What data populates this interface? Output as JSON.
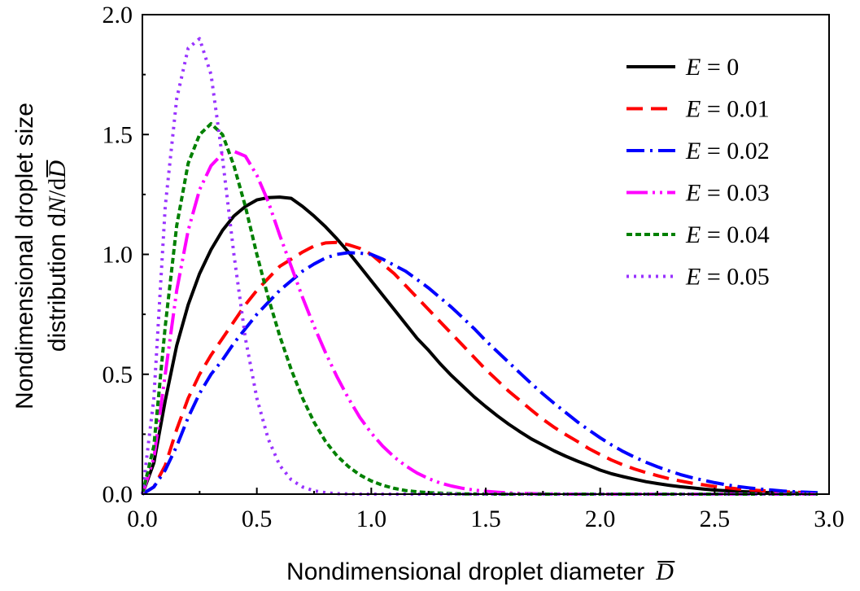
{
  "chart_data": {
    "type": "line",
    "title": "",
    "xlabel": "Nondimensional droplet diameter",
    "xlabel_symbol": "D",
    "ylabel_line1": "Nondimensional droplet size",
    "ylabel_line2": "distribution d",
    "ylabel_symbol_n": "N",
    "ylabel_slash_d": "/d",
    "ylabel_symbol_d": "D",
    "xlim": [
      0,
      3.0
    ],
    "ylim": [
      0,
      2.0
    ],
    "xticks": [
      0,
      0.5,
      1.0,
      1.5,
      2.0,
      2.5,
      3.0
    ],
    "xtick_labels": [
      "0.0",
      "0.5",
      "1.0",
      "1.5",
      "2.0",
      "2.5",
      "3.0"
    ],
    "yticks": [
      0,
      0.5,
      1.0,
      1.5,
      2.0
    ],
    "ytick_labels": [
      "0.0",
      "0.5",
      "1.0",
      "1.5",
      "2.0"
    ],
    "grid": false,
    "legend_position": "top-right",
    "x": [
      0,
      0.05,
      0.1,
      0.15,
      0.2,
      0.25,
      0.3,
      0.35,
      0.4,
      0.45,
      0.5,
      0.55,
      0.6,
      0.65,
      0.7,
      0.75,
      0.8,
      0.85,
      0.9,
      0.95,
      1.0,
      1.05,
      1.1,
      1.15,
      1.2,
      1.25,
      1.3,
      1.35,
      1.4,
      1.45,
      1.5,
      1.55,
      1.6,
      1.65,
      1.7,
      1.75,
      1.8,
      1.85,
      1.9,
      1.95,
      2.0,
      2.05,
      2.1,
      2.15,
      2.2,
      2.25,
      2.3,
      2.35,
      2.4,
      2.45,
      2.5,
      2.55,
      2.6,
      2.65,
      2.7,
      2.75,
      2.8,
      2.85,
      2.9,
      2.95
    ],
    "series": [
      {
        "name": "E = 0",
        "legend_var": "E",
        "legend_value": " = 0",
        "color": "#000000",
        "dash": "",
        "values": [
          0,
          0.13,
          0.39,
          0.62,
          0.79,
          0.92,
          1.02,
          1.1,
          1.16,
          1.2,
          1.227,
          1.237,
          1.239,
          1.234,
          1.2,
          1.16,
          1.115,
          1.065,
          1.01,
          0.95,
          0.89,
          0.83,
          0.77,
          0.71,
          0.65,
          0.6,
          0.545,
          0.495,
          0.45,
          0.405,
          0.365,
          0.327,
          0.292,
          0.26,
          0.23,
          0.205,
          0.18,
          0.158,
          0.138,
          0.12,
          0.1,
          0.085,
          0.073,
          0.062,
          0.052,
          0.044,
          0.037,
          0.031,
          0.026,
          0.021,
          0.017,
          0.014,
          0.011,
          0.009,
          0.007,
          0.006,
          0.005,
          0.004,
          0.003,
          0.002
        ]
      },
      {
        "name": "E = 0.01",
        "legend_var": "E",
        "legend_value": " = 0.01",
        "color": "#ff0000",
        "dash": "20 10",
        "values": [
          0,
          0.03,
          0.12,
          0.27,
          0.4,
          0.5,
          0.58,
          0.65,
          0.72,
          0.79,
          0.85,
          0.9,
          0.95,
          0.98,
          1.01,
          1.035,
          1.048,
          1.05,
          1.04,
          1.025,
          1.0,
          0.96,
          0.92,
          0.87,
          0.82,
          0.77,
          0.72,
          0.67,
          0.62,
          0.57,
          0.52,
          0.475,
          0.43,
          0.39,
          0.35,
          0.312,
          0.278,
          0.248,
          0.22,
          0.19,
          0.165,
          0.142,
          0.122,
          0.105,
          0.09,
          0.077,
          0.065,
          0.055,
          0.046,
          0.039,
          0.032,
          0.027,
          0.022,
          0.018,
          0.015,
          0.012,
          0.01,
          0.008,
          0.006,
          0.005
        ]
      },
      {
        "name": "E = 0.02",
        "legend_var": "E",
        "legend_value": " = 0.02",
        "color": "#0000ff",
        "dash": "22 7 3 7",
        "values": [
          0,
          0.03,
          0.1,
          0.2,
          0.32,
          0.42,
          0.5,
          0.56,
          0.63,
          0.69,
          0.75,
          0.8,
          0.85,
          0.89,
          0.93,
          0.96,
          0.985,
          1.0,
          1.007,
          1.005,
          1.0,
          0.98,
          0.955,
          0.93,
          0.895,
          0.86,
          0.82,
          0.78,
          0.735,
          0.69,
          0.64,
          0.595,
          0.55,
          0.505,
          0.46,
          0.418,
          0.378,
          0.34,
          0.302,
          0.268,
          0.235,
          0.205,
          0.178,
          0.154,
          0.133,
          0.114,
          0.097,
          0.082,
          0.069,
          0.058,
          0.048,
          0.039,
          0.032,
          0.026,
          0.021,
          0.017,
          0.013,
          0.01,
          0.008,
          0.006
        ]
      },
      {
        "name": "E = 0.03",
        "legend_var": "E",
        "legend_value": " = 0.03",
        "color": "#ff00ff",
        "dash": "26 6 3 6 3 6",
        "values": [
          0,
          0.15,
          0.5,
          0.85,
          1.1,
          1.27,
          1.37,
          1.42,
          1.43,
          1.41,
          1.33,
          1.22,
          1.08,
          0.95,
          0.82,
          0.7,
          0.59,
          0.49,
          0.4,
          0.32,
          0.255,
          0.2,
          0.155,
          0.118,
          0.088,
          0.065,
          0.047,
          0.034,
          0.024,
          0.017,
          0.012,
          0.008,
          0.005,
          0.003,
          0.002,
          0.001,
          0.001,
          0,
          0,
          0,
          0,
          0,
          0,
          0,
          0,
          0,
          0,
          0,
          0,
          0,
          0,
          0,
          0,
          0,
          0,
          0,
          0,
          0,
          0,
          0
        ]
      },
      {
        "name": "E = 0.04",
        "legend_var": "E",
        "legend_value": " = 0.04",
        "color": "#008000",
        "dash": "7 4",
        "values": [
          0,
          0.2,
          0.7,
          1.12,
          1.38,
          1.5,
          1.545,
          1.5,
          1.37,
          1.2,
          1.0,
          0.82,
          0.66,
          0.52,
          0.4,
          0.3,
          0.22,
          0.16,
          0.115,
          0.08,
          0.055,
          0.037,
          0.024,
          0.015,
          0.01,
          0.006,
          0.004,
          0.002,
          0.001,
          0.001,
          0,
          0,
          0,
          0,
          0,
          0,
          0,
          0,
          0,
          0,
          0,
          0,
          0,
          0,
          0,
          0,
          0,
          0,
          0,
          0,
          0,
          0,
          0,
          0,
          0,
          0,
          0,
          0,
          0,
          0
        ]
      },
      {
        "name": "E = 0.05",
        "legend_var": "E",
        "legend_value": " = 0.05",
        "color": "#9933ff",
        "dash": "3 6",
        "values": [
          0,
          0.4,
          1.2,
          1.65,
          1.86,
          1.9,
          1.75,
          1.4,
          1.0,
          0.65,
          0.4,
          0.23,
          0.12,
          0.06,
          0.03,
          0.014,
          0.006,
          0.002,
          0.001,
          0,
          0,
          0,
          0,
          0,
          0,
          0,
          0,
          0,
          0,
          0,
          0,
          0,
          0,
          0,
          0,
          0,
          0,
          0,
          0,
          0,
          0,
          0,
          0,
          0,
          0,
          0,
          0,
          0,
          0,
          0,
          0,
          0,
          0,
          0,
          0,
          0,
          0,
          0,
          0,
          0
        ]
      }
    ]
  }
}
